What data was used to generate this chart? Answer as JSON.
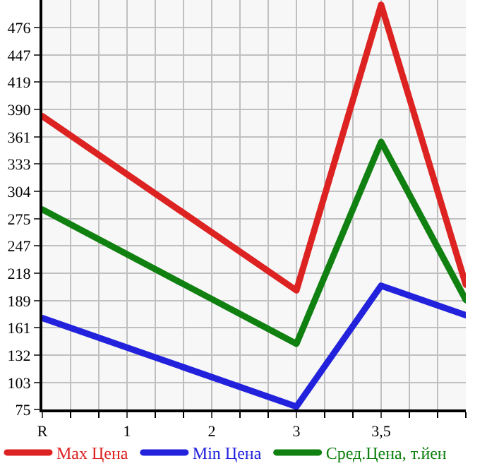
{
  "chart_data": {
    "type": "line",
    "categories": [
      "R",
      "1",
      "2",
      "3",
      "3,5",
      null
    ],
    "series": [
      {
        "name": "Max Цена",
        "color": "#dd2222",
        "values": [
          383,
          null,
          null,
          200,
          500,
          206
        ]
      },
      {
        "name": "Min Цена",
        "color": "#2222dd",
        "values": [
          171,
          null,
          null,
          78,
          205,
          174
        ]
      },
      {
        "name": "Сред.Цена, т.йен",
        "color": "#108010",
        "values": [
          285,
          null,
          null,
          144,
          356,
          190
        ]
      }
    ],
    "ylim": [
      75,
      505
    ],
    "yticks": [
      75,
      103,
      132,
      161,
      189,
      218,
      247,
      275,
      304,
      333,
      361,
      390,
      419,
      447,
      476
    ],
    "grid": true,
    "legend": "bottom",
    "marker": "none",
    "line_style": "solid"
  }
}
